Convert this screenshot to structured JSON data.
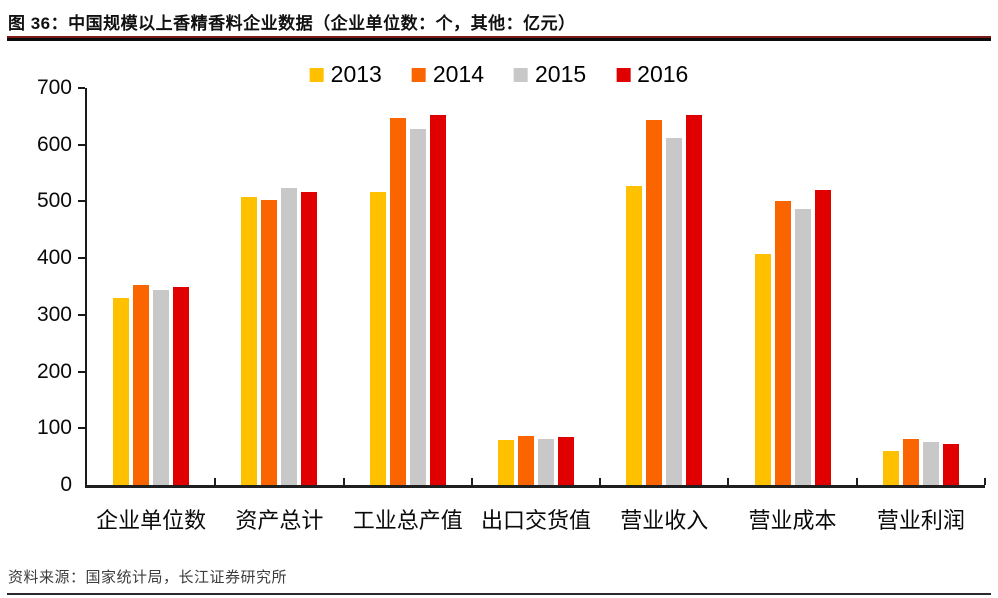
{
  "figure": {
    "title": "图 36：中国规模以上香精香料企业数据（企业单位数：个，其他：亿元）",
    "source": "资料来源：国家统计局，长江证券研究所"
  },
  "chart_data": {
    "type": "bar",
    "title": "中国规模以上香精香料企业数据",
    "unit_note": "企业单位数：个，其他：亿元",
    "categories": [
      "企业单位数",
      "资产总计",
      "工业总产值",
      "出口交货值",
      "营业收入",
      "营业成本",
      "营业利润"
    ],
    "series": [
      {
        "name": "2013",
        "color": "#FFC000",
        "values": [
          330,
          507,
          516,
          80,
          528,
          408,
          60
        ]
      },
      {
        "name": "2014",
        "color": "#FB6500",
        "values": [
          352,
          503,
          648,
          87,
          643,
          500,
          82
        ]
      },
      {
        "name": "2015",
        "color": "#C8C8C8",
        "values": [
          343,
          523,
          627,
          82,
          612,
          486,
          75
        ]
      },
      {
        "name": "2016",
        "color": "#E00000",
        "values": [
          350,
          517,
          653,
          85,
          653,
          520,
          72
        ]
      }
    ],
    "xlabel": "",
    "ylabel": "",
    "ylim": [
      0,
      700
    ],
    "yticks": [
      0,
      100,
      200,
      300,
      400,
      500,
      600,
      700
    ],
    "grid": false,
    "legend_position": "top-center"
  }
}
